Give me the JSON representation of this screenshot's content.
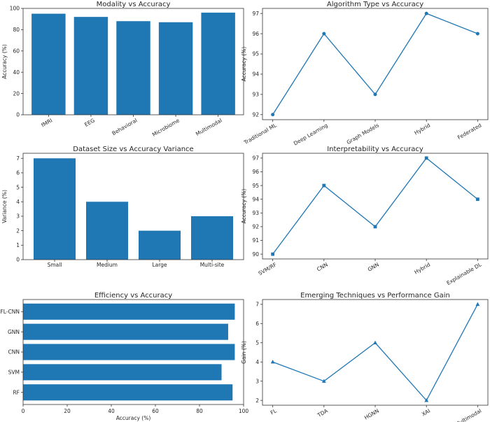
{
  "colors": {
    "primary": "#1f77b4",
    "text": "#262626",
    "axis": "#333333"
  },
  "chart_data": [
    {
      "type": "bar",
      "title": "Modality vs Accuracy",
      "xlabel": "",
      "ylabel": "Accuracy (%)",
      "categories": [
        "fMRI",
        "EEG",
        "Behavioral",
        "Microbiome",
        "Multimodal"
      ],
      "values": [
        95,
        92,
        88,
        87,
        96
      ],
      "ylim": [
        0,
        100
      ],
      "yticks": [
        0,
        20,
        40,
        60,
        80,
        100
      ],
      "grid": false
    },
    {
      "type": "line",
      "marker": "circle",
      "title": "Algorithm Type vs Accuracy",
      "xlabel": "",
      "ylabel": "Accuracy (%)",
      "categories": [
        "Traditional ML",
        "Deep Learning",
        "Graph Models",
        "Hybrid",
        "Federated"
      ],
      "values": [
        92,
        96,
        93,
        97,
        96
      ],
      "ylim": [
        91.75,
        97.25
      ],
      "yticks": [
        92,
        93,
        94,
        95,
        96,
        97
      ],
      "grid": false
    },
    {
      "type": "bar",
      "title": "Dataset Size vs Accuracy Variance",
      "xlabel": "",
      "ylabel": "Variance (%)",
      "categories": [
        "Small",
        "Medium",
        "Large",
        "Multi-site"
      ],
      "values": [
        7,
        4,
        2,
        3
      ],
      "ylim": [
        0,
        7.35
      ],
      "yticks": [
        0,
        1,
        2,
        3,
        4,
        5,
        6,
        7
      ],
      "grid": false
    },
    {
      "type": "line",
      "marker": "square",
      "title": "Interpretability vs Accuracy",
      "xlabel": "",
      "ylabel": "Accuracy (%)",
      "categories": [
        "SVM/RF",
        "CNN",
        "GNN",
        "Hybrid",
        "Explainable DL"
      ],
      "values": [
        90,
        95,
        92,
        97,
        94
      ],
      "ylim": [
        89.65,
        97.35
      ],
      "yticks": [
        90,
        91,
        92,
        93,
        94,
        95,
        96,
        97
      ],
      "grid": false
    },
    {
      "type": "barh",
      "title": "Efficiency vs Accuracy",
      "xlabel": "Accuracy (%)",
      "ylabel": "",
      "categories": [
        "RF",
        "SVM",
        "CNN",
        "GNN",
        "FL-CNN"
      ],
      "values": [
        95,
        90,
        96,
        93,
        96
      ],
      "xlim": [
        0,
        100
      ],
      "xticks": [
        0,
        20,
        40,
        60,
        80,
        100
      ],
      "grid": false
    },
    {
      "type": "line",
      "marker": "triangle",
      "title": "Emerging Techniques vs Performance Gain",
      "xlabel": "",
      "ylabel": "Gain (%)",
      "categories": [
        "FL",
        "TDA",
        "HGNN",
        "XAI",
        "Multimodal"
      ],
      "values": [
        4,
        3,
        5,
        2,
        7
      ],
      "ylim": [
        1.75,
        7.25
      ],
      "yticks": [
        2,
        3,
        4,
        5,
        6,
        7
      ],
      "grid": false
    }
  ]
}
